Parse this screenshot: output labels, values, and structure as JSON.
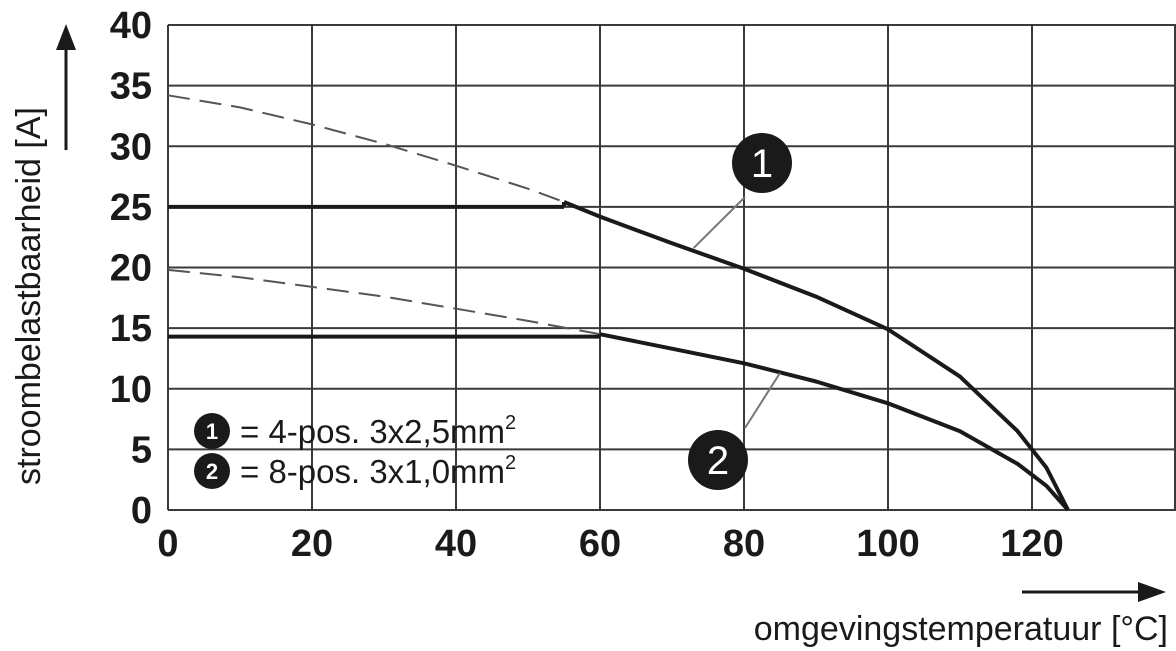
{
  "chart_data": {
    "type": "line",
    "xlabel": "omgevingstemperatuur [°C]",
    "ylabel": "stroombelastbaarheid [A]",
    "xlim": [
      0,
      140
    ],
    "ylim": [
      0,
      40
    ],
    "x_ticks": [
      0,
      20,
      40,
      60,
      80,
      100,
      120
    ],
    "y_ticks": [
      0,
      5,
      10,
      15,
      20,
      25,
      30,
      35,
      40
    ],
    "grid": true,
    "legend_position": "bottom-left",
    "series": [
      {
        "name": "4-pos. 3x2,5mm",
        "badge": "1",
        "limit": 25,
        "solid_curve": {
          "x": [
            55,
            60,
            70,
            80,
            90,
            100,
            110,
            118,
            122,
            125
          ],
          "y": [
            25.4,
            24.2,
            22,
            19.9,
            17.6,
            14.9,
            11,
            6.5,
            3.5,
            0
          ]
        },
        "dashed_extension": {
          "x": [
            0,
            10,
            20,
            30,
            40,
            50,
            55
          ],
          "y": [
            34.2,
            33.2,
            31.8,
            30.2,
            28.4,
            26.5,
            25.4
          ]
        }
      },
      {
        "name": "8-pos. 3x1,0mm",
        "badge": "2",
        "limit": 14.3,
        "solid_curve": {
          "x": [
            60,
            70,
            80,
            90,
            100,
            110,
            118,
            122,
            125
          ],
          "y": [
            14.5,
            13.3,
            12.1,
            10.6,
            8.8,
            6.5,
            3.8,
            2,
            0
          ]
        },
        "dashed_extension": {
          "x": [
            0,
            10,
            20,
            30,
            40,
            50,
            60
          ],
          "y": [
            19.8,
            19.2,
            18.4,
            17.6,
            16.6,
            15.6,
            14.5
          ]
        }
      }
    ],
    "legend": [
      {
        "badge": "1",
        "text": "= 4-pos. 3x2,5mm",
        "sup": "2"
      },
      {
        "badge": "2",
        "text": "= 8-pos. 3x1,0mm",
        "sup": "2"
      }
    ],
    "callouts": [
      {
        "badge": "1",
        "target_x": 73,
        "target_y": 21.6
      },
      {
        "badge": "2",
        "target_x": 85,
        "target_y": 11.3
      }
    ]
  }
}
